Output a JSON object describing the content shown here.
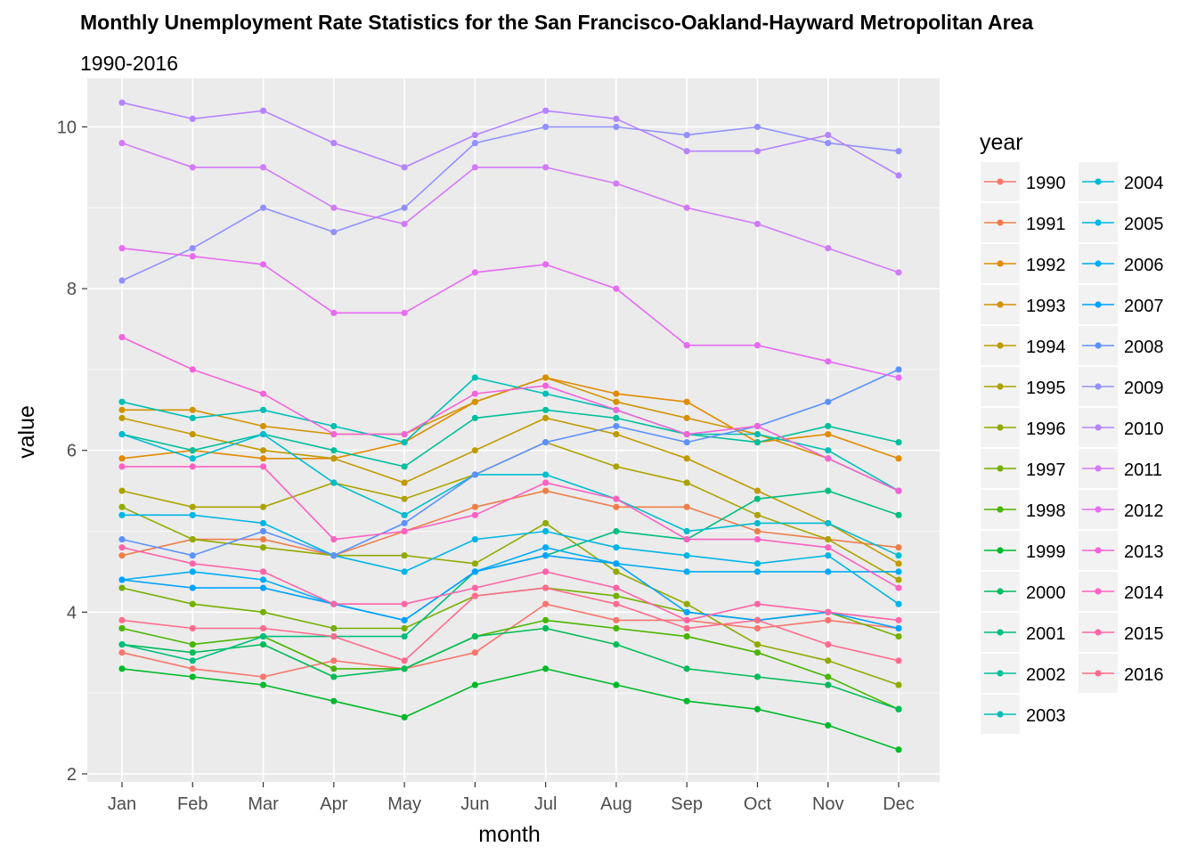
{
  "chart_data": {
    "type": "line",
    "title": "Monthly Unemployment Rate Statistics for the San Francisco-Oakland-Hayward Metropolitan Area",
    "subtitle": "1990-2016",
    "xlabel": "month",
    "ylabel": "value",
    "legend_title": "year",
    "legend_position": "right",
    "grid": true,
    "categories": [
      "Jan",
      "Feb",
      "Mar",
      "Apr",
      "May",
      "Jun",
      "Jul",
      "Aug",
      "Sep",
      "Oct",
      "Nov",
      "Dec"
    ],
    "ylim": [
      1.9,
      10.6
    ],
    "yticks": [
      2,
      4,
      6,
      8,
      10
    ],
    "series": [
      {
        "name": "1990",
        "color": "#F8766D",
        "values": [
          3.5,
          3.3,
          3.2,
          3.4,
          3.3,
          3.5,
          4.1,
          3.9,
          3.9,
          3.8,
          3.9,
          3.8
        ]
      },
      {
        "name": "1991",
        "color": "#EE7F4A",
        "values": [
          4.7,
          4.9,
          4.9,
          4.7,
          5.0,
          5.3,
          5.5,
          5.3,
          5.3,
          5.0,
          4.9,
          4.8
        ]
      },
      {
        "name": "1992",
        "color": "#E28A00",
        "values": [
          5.9,
          6.0,
          5.9,
          5.9,
          6.1,
          6.6,
          6.9,
          6.7,
          6.6,
          6.1,
          6.2,
          5.9
        ]
      },
      {
        "name": "1993",
        "color": "#D39200",
        "values": [
          6.5,
          6.5,
          6.3,
          6.2,
          6.2,
          6.6,
          6.9,
          6.6,
          6.4,
          6.2,
          5.9,
          5.5
        ]
      },
      {
        "name": "1994",
        "color": "#C19A00",
        "values": [
          6.4,
          6.2,
          6.0,
          5.9,
          5.6,
          6.0,
          6.4,
          6.2,
          5.9,
          5.5,
          5.1,
          4.6
        ]
      },
      {
        "name": "1995",
        "color": "#ABA300",
        "values": [
          5.5,
          5.3,
          5.3,
          5.6,
          5.4,
          5.7,
          6.1,
          5.8,
          5.6,
          5.2,
          4.9,
          4.4
        ]
      },
      {
        "name": "1996",
        "color": "#92AA00",
        "values": [
          5.3,
          4.9,
          4.8,
          4.7,
          4.7,
          4.6,
          5.1,
          4.5,
          4.1,
          3.6,
          3.4,
          3.1
        ]
      },
      {
        "name": "1997",
        "color": "#74B000",
        "values": [
          4.3,
          4.1,
          4.0,
          3.8,
          3.8,
          4.2,
          4.3,
          4.2,
          4.0,
          3.9,
          4.0,
          3.7
        ]
      },
      {
        "name": "1998",
        "color": "#49B500",
        "values": [
          3.8,
          3.6,
          3.7,
          3.3,
          3.3,
          3.7,
          3.9,
          3.8,
          3.7,
          3.5,
          3.2,
          2.8
        ]
      },
      {
        "name": "1999",
        "color": "#00B92A",
        "values": [
          3.3,
          3.2,
          3.1,
          2.9,
          2.7,
          3.1,
          3.3,
          3.1,
          2.9,
          2.8,
          2.6,
          2.3
        ]
      },
      {
        "name": "2000",
        "color": "#00BC59",
        "values": [
          3.6,
          3.5,
          3.6,
          3.2,
          3.3,
          3.7,
          3.8,
          3.6,
          3.3,
          3.2,
          3.1,
          2.8
        ]
      },
      {
        "name": "2001",
        "color": "#00BE7D",
        "values": [
          3.6,
          3.4,
          3.7,
          3.7,
          3.7,
          4.5,
          4.7,
          5.0,
          4.9,
          5.4,
          5.5,
          5.2
        ]
      },
      {
        "name": "2002",
        "color": "#00BF9C",
        "values": [
          6.2,
          6.0,
          6.2,
          6.0,
          5.8,
          6.4,
          6.5,
          6.4,
          6.2,
          6.1,
          6.3,
          6.1
        ]
      },
      {
        "name": "2003",
        "color": "#00BFB7",
        "values": [
          6.6,
          6.4,
          6.5,
          6.3,
          6.1,
          6.9,
          6.7,
          6.5,
          6.2,
          6.2,
          6.0,
          5.5
        ]
      },
      {
        "name": "2004",
        "color": "#00BCD0",
        "values": [
          6.2,
          5.9,
          6.2,
          5.6,
          5.2,
          5.7,
          5.7,
          5.4,
          5.0,
          5.1,
          5.1,
          4.7
        ]
      },
      {
        "name": "2005",
        "color": "#00B6E5",
        "values": [
          5.2,
          5.2,
          5.1,
          4.7,
          4.5,
          4.9,
          5.0,
          4.8,
          4.7,
          4.6,
          4.7,
          4.1
        ]
      },
      {
        "name": "2006",
        "color": "#00ADF5",
        "values": [
          4.4,
          4.5,
          4.4,
          4.1,
          3.9,
          4.5,
          4.8,
          4.6,
          4.5,
          4.5,
          4.5,
          4.5
        ]
      },
      {
        "name": "2007",
        "color": "#00A2FF",
        "values": [
          4.4,
          4.3,
          4.3,
          4.1,
          3.9,
          4.5,
          4.7,
          4.6,
          4.0,
          3.9,
          4.0,
          3.8
        ]
      },
      {
        "name": "2008",
        "color": "#5C92FF",
        "values": [
          4.9,
          4.7,
          5.0,
          4.7,
          5.1,
          5.7,
          6.1,
          6.3,
          6.1,
          6.3,
          6.6,
          7.0
        ]
      },
      {
        "name": "2009",
        "color": "#9291FF",
        "values": [
          8.1,
          8.5,
          9.0,
          8.7,
          9.0,
          9.8,
          10.0,
          10.0,
          9.9,
          10.0,
          9.8,
          9.7
        ]
      },
      {
        "name": "2010",
        "color": "#B684FF",
        "values": [
          10.3,
          10.1,
          10.2,
          9.8,
          9.5,
          9.9,
          10.2,
          10.1,
          9.7,
          9.7,
          9.9,
          9.4
        ]
      },
      {
        "name": "2011",
        "color": "#D27BF8",
        "values": [
          9.8,
          9.5,
          9.5,
          9.0,
          8.8,
          9.5,
          9.5,
          9.3,
          9.0,
          8.8,
          8.5,
          8.2
        ]
      },
      {
        "name": "2012",
        "color": "#E76BF3",
        "values": [
          8.5,
          8.4,
          8.3,
          7.7,
          7.7,
          8.2,
          8.3,
          8.0,
          7.3,
          7.3,
          7.1,
          6.9
        ]
      },
      {
        "name": "2013",
        "color": "#F463D9",
        "values": [
          7.4,
          7.0,
          6.7,
          6.2,
          6.2,
          6.7,
          6.8,
          6.5,
          6.2,
          6.3,
          5.9,
          5.5
        ]
      },
      {
        "name": "2014",
        "color": "#FD61C1",
        "values": [
          5.8,
          5.8,
          5.8,
          4.9,
          5.0,
          5.2,
          5.6,
          5.4,
          4.9,
          4.9,
          4.8,
          4.3
        ]
      },
      {
        "name": "2015",
        "color": "#FF64A8",
        "values": [
          4.8,
          4.6,
          4.5,
          4.1,
          4.1,
          4.3,
          4.5,
          4.3,
          3.9,
          4.1,
          4.0,
          3.9
        ]
      },
      {
        "name": "2016",
        "color": "#FF6C8D",
        "values": [
          3.9,
          3.8,
          3.8,
          3.7,
          3.4,
          4.2,
          4.3,
          4.1,
          3.8,
          3.9,
          3.6,
          3.4
        ]
      }
    ]
  }
}
